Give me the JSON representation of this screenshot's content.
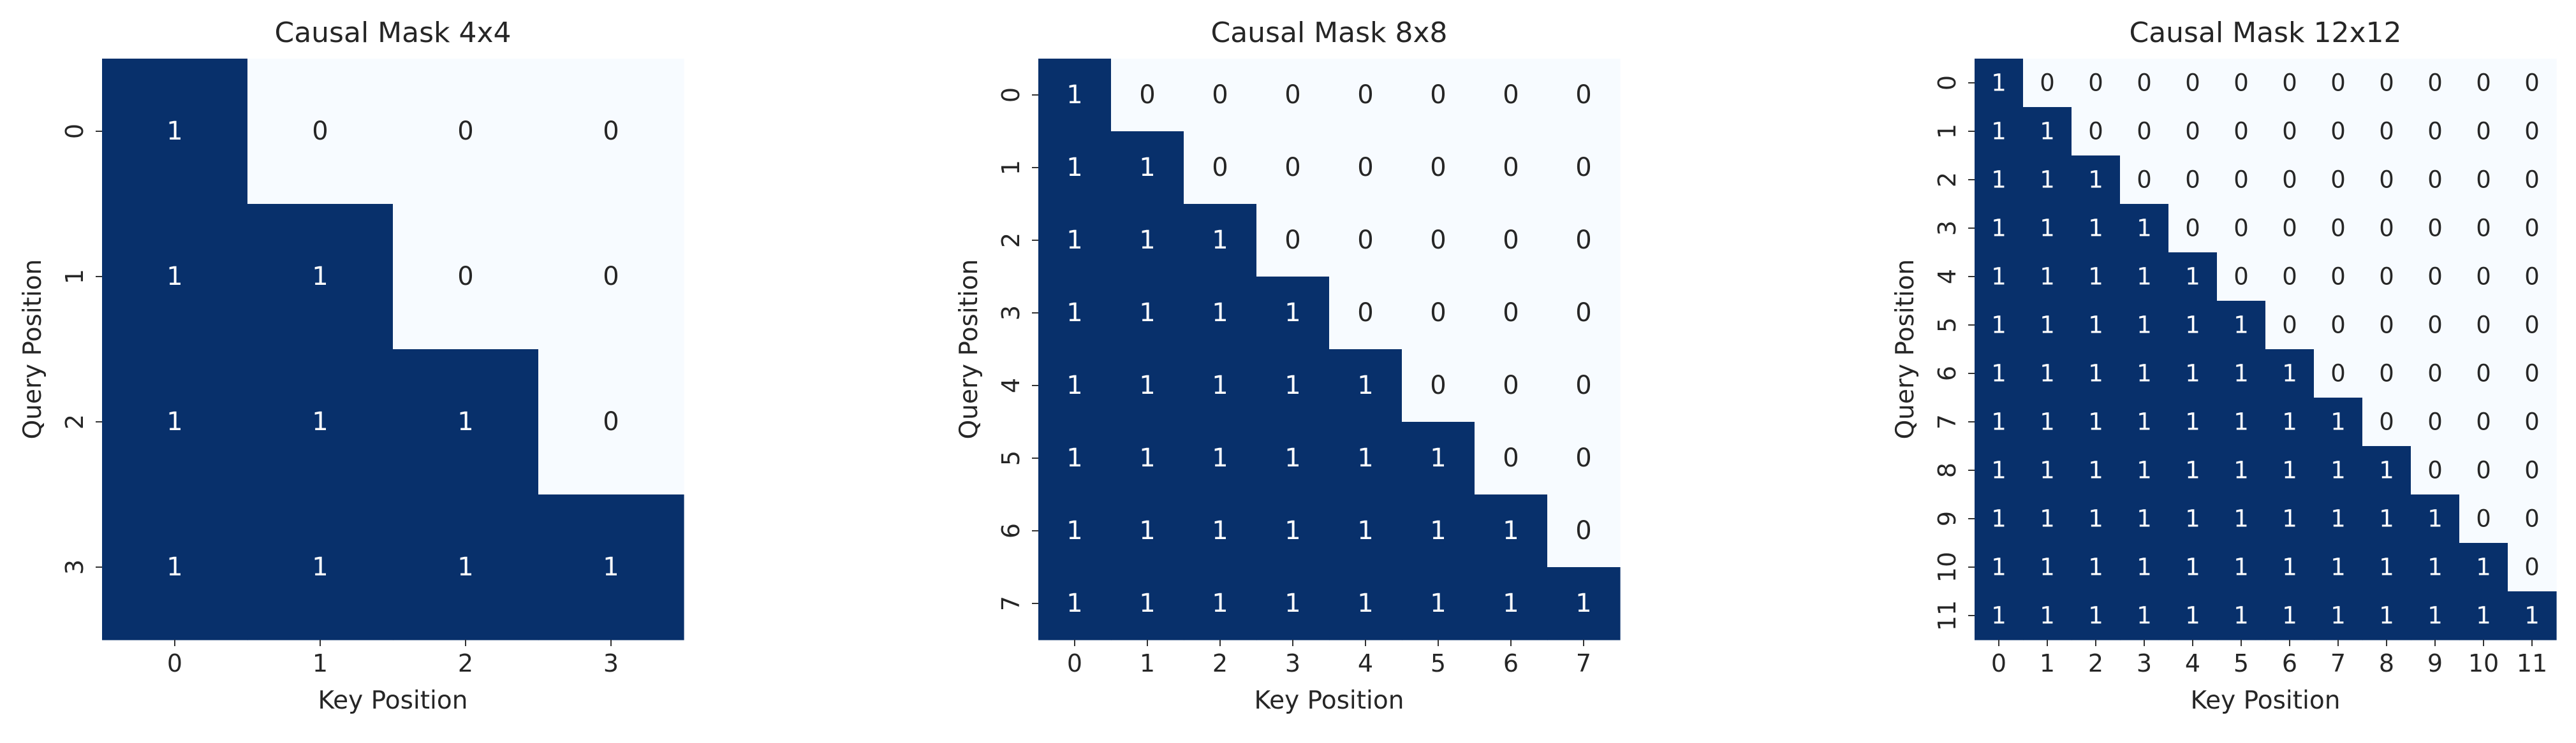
{
  "chart_data": [
    {
      "type": "heatmap",
      "title": "Causal Mask 4x4",
      "xlabel": "Key Position",
      "ylabel": "Query Position",
      "x_ticks": [
        "0",
        "1",
        "2",
        "3"
      ],
      "y_ticks": [
        "0",
        "1",
        "2",
        "3"
      ],
      "values": [
        [
          1,
          0,
          0,
          0
        ],
        [
          1,
          1,
          0,
          0
        ],
        [
          1,
          1,
          1,
          0
        ],
        [
          1,
          1,
          1,
          1
        ]
      ],
      "annotations": true,
      "color_range": [
        0,
        1
      ],
      "colorbar": false
    },
    {
      "type": "heatmap",
      "title": "Causal Mask 8x8",
      "xlabel": "Key Position",
      "ylabel": "Query Position",
      "x_ticks": [
        "0",
        "1",
        "2",
        "3",
        "4",
        "5",
        "6",
        "7"
      ],
      "y_ticks": [
        "0",
        "1",
        "2",
        "3",
        "4",
        "5",
        "6",
        "7"
      ],
      "values": [
        [
          1,
          0,
          0,
          0,
          0,
          0,
          0,
          0
        ],
        [
          1,
          1,
          0,
          0,
          0,
          0,
          0,
          0
        ],
        [
          1,
          1,
          1,
          0,
          0,
          0,
          0,
          0
        ],
        [
          1,
          1,
          1,
          1,
          0,
          0,
          0,
          0
        ],
        [
          1,
          1,
          1,
          1,
          1,
          0,
          0,
          0
        ],
        [
          1,
          1,
          1,
          1,
          1,
          1,
          0,
          0
        ],
        [
          1,
          1,
          1,
          1,
          1,
          1,
          1,
          0
        ],
        [
          1,
          1,
          1,
          1,
          1,
          1,
          1,
          1
        ]
      ],
      "annotations": true,
      "color_range": [
        0,
        1
      ],
      "colorbar": false
    },
    {
      "type": "heatmap",
      "title": "Causal Mask 12x12",
      "xlabel": "Key Position",
      "ylabel": "Query Position",
      "x_ticks": [
        "0",
        "1",
        "2",
        "3",
        "4",
        "5",
        "6",
        "7",
        "8",
        "9",
        "10",
        "11"
      ],
      "y_ticks": [
        "0",
        "1",
        "2",
        "3",
        "4",
        "5",
        "6",
        "7",
        "8",
        "9",
        "10",
        "11"
      ],
      "values": [
        [
          1,
          0,
          0,
          0,
          0,
          0,
          0,
          0,
          0,
          0,
          0,
          0
        ],
        [
          1,
          1,
          0,
          0,
          0,
          0,
          0,
          0,
          0,
          0,
          0,
          0
        ],
        [
          1,
          1,
          1,
          0,
          0,
          0,
          0,
          0,
          0,
          0,
          0,
          0
        ],
        [
          1,
          1,
          1,
          1,
          0,
          0,
          0,
          0,
          0,
          0,
          0,
          0
        ],
        [
          1,
          1,
          1,
          1,
          1,
          0,
          0,
          0,
          0,
          0,
          0,
          0
        ],
        [
          1,
          1,
          1,
          1,
          1,
          1,
          0,
          0,
          0,
          0,
          0,
          0
        ],
        [
          1,
          1,
          1,
          1,
          1,
          1,
          1,
          0,
          0,
          0,
          0,
          0
        ],
        [
          1,
          1,
          1,
          1,
          1,
          1,
          1,
          1,
          0,
          0,
          0,
          0
        ],
        [
          1,
          1,
          1,
          1,
          1,
          1,
          1,
          1,
          1,
          0,
          0,
          0
        ],
        [
          1,
          1,
          1,
          1,
          1,
          1,
          1,
          1,
          1,
          1,
          0,
          0
        ],
        [
          1,
          1,
          1,
          1,
          1,
          1,
          1,
          1,
          1,
          1,
          1,
          0
        ],
        [
          1,
          1,
          1,
          1,
          1,
          1,
          1,
          1,
          1,
          1,
          1,
          1
        ]
      ],
      "annotations": true,
      "color_range": [
        0,
        1
      ],
      "colorbar": false
    }
  ],
  "colors": {
    "one": "#08306b",
    "zero": "#f7fbff",
    "text_on_one": "#ffffff",
    "text_on_zero": "#262626",
    "axis_text": "#262626",
    "tick": "#333333"
  }
}
